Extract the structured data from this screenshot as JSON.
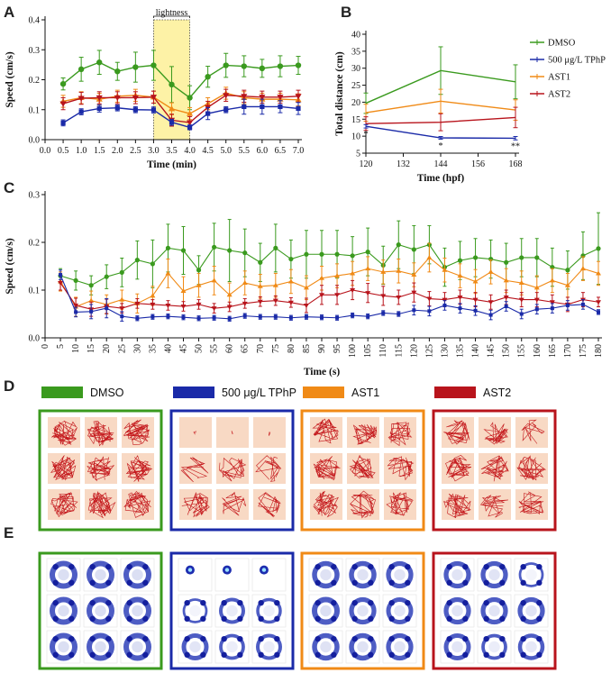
{
  "panel_labels": {
    "A": "A",
    "B": "B",
    "C": "C",
    "D": "D",
    "E": "E"
  },
  "colors": {
    "DMSO": "#3a9a1e",
    "TPhP": "#1a2aa8",
    "AST1": "#f08a16",
    "AST2": "#b8141c",
    "light_band": "#fdf2a6"
  },
  "legend": [
    "DMSO",
    "500 μg/L TPhP",
    "AST1",
    "AST2"
  ],
  "light_label": "lightness",
  "chart_data": [
    {
      "type": "line",
      "title": "",
      "xlabel": "Time (min)",
      "ylabel": "Speed (cm/s)",
      "xlim": [
        0,
        7
      ],
      "ylim": [
        0,
        0.4
      ],
      "x_ticks": [
        "0.0",
        "0.5",
        "1.0",
        "1.5",
        "2.0",
        "2.5",
        "3.0",
        "3.5",
        "4.0",
        "4.5",
        "5.0",
        "5.5",
        "6.0",
        "6.5",
        "7.0"
      ],
      "y_ticks": [
        "0.0",
        "0.1",
        "0.2",
        "0.3",
        "0.4"
      ],
      "light_band": [
        3.0,
        4.0
      ],
      "x": [
        0.5,
        1.0,
        1.5,
        2.0,
        2.5,
        3.0,
        3.5,
        4.0,
        4.5,
        5.0,
        5.5,
        6.0,
        6.5,
        7.0
      ],
      "series": [
        {
          "name": "DMSO",
          "values": [
            0.186,
            0.235,
            0.258,
            0.228,
            0.242,
            0.248,
            0.184,
            0.14,
            0.21,
            0.248,
            0.245,
            0.238,
            0.245,
            0.248
          ],
          "err": [
            0.02,
            0.04,
            0.04,
            0.03,
            0.05,
            0.05,
            0.06,
            0.04,
            0.035,
            0.04,
            0.035,
            0.03,
            0.035,
            0.03
          ]
        },
        {
          "name": "500 μg/L TPhP",
          "values": [
            0.056,
            0.093,
            0.104,
            0.106,
            0.1,
            0.099,
            0.058,
            0.041,
            0.087,
            0.1,
            0.11,
            0.11,
            0.11,
            0.104
          ],
          "err": [
            0.01,
            0.01,
            0.012,
            0.01,
            0.01,
            0.01,
            0.01,
            0.008,
            0.02,
            0.01,
            0.025,
            0.025,
            0.02,
            0.02
          ]
        },
        {
          "name": "AST1",
          "values": [
            0.128,
            0.14,
            0.135,
            0.145,
            0.148,
            0.142,
            0.103,
            0.087,
            0.12,
            0.155,
            0.14,
            0.135,
            0.135,
            0.133
          ],
          "err": [
            0.02,
            0.02,
            0.02,
            0.02,
            0.02,
            0.02,
            0.02,
            0.02,
            0.02,
            0.02,
            0.02,
            0.02,
            0.02,
            0.02
          ]
        },
        {
          "name": "AST2",
          "values": [
            0.12,
            0.138,
            0.14,
            0.14,
            0.14,
            0.142,
            0.065,
            0.057,
            0.108,
            0.148,
            0.145,
            0.142,
            0.142,
            0.145
          ],
          "err": [
            0.02,
            0.02,
            0.02,
            0.02,
            0.02,
            0.02,
            0.02,
            0.02,
            0.02,
            0.02,
            0.02,
            0.02,
            0.02,
            0.02
          ]
        }
      ]
    },
    {
      "type": "line",
      "title": "",
      "xlabel": "Time (hpf)",
      "ylabel": "Total distance (cm)",
      "xlim": [
        120,
        168
      ],
      "ylim": [
        5,
        40
      ],
      "x_ticks": [
        "120",
        "132",
        "144",
        "156",
        "168"
      ],
      "y_ticks": [
        "5",
        "10",
        "15",
        "20",
        "25",
        "30",
        "35",
        "40"
      ],
      "x": [
        120,
        144,
        168
      ],
      "series": [
        {
          "name": "DMSO",
          "values": [
            19.7,
            29.3,
            26.0
          ],
          "err": [
            3,
            7,
            5
          ]
        },
        {
          "name": "500 μg/L TPhP",
          "values": [
            12.9,
            9.5,
            9.4
          ],
          "err": [
            0.5,
            0.4,
            0.5
          ]
        },
        {
          "name": "AST1",
          "values": [
            16.9,
            20.3,
            17.7
          ],
          "err": [
            2.5,
            3.5,
            3
          ]
        },
        {
          "name": "AST2",
          "values": [
            13.7,
            14.1,
            15.5
          ],
          "err": [
            2,
            2.5,
            3
          ]
        }
      ],
      "annotations": [
        "*",
        "*",
        "**"
      ]
    },
    {
      "type": "line",
      "title": "",
      "xlabel": "Time (s)",
      "ylabel": "Speed (cm/s)",
      "xlim": [
        0,
        180
      ],
      "ylim": [
        0,
        0.3
      ],
      "x_ticks": [
        "0",
        "5",
        "10",
        "15",
        "20",
        "25",
        "30",
        "35",
        "40",
        "45",
        "50",
        "55",
        "60",
        "65",
        "70",
        "75",
        "80",
        "85",
        "90",
        "95",
        "100",
        "105",
        "110",
        "115",
        "120",
        "125",
        "130",
        "135",
        "140",
        "145",
        "150",
        "155",
        "160",
        "165",
        "170",
        "175",
        "180"
      ],
      "y_ticks": [
        "0.0",
        "0.1",
        "0.2",
        "0.3"
      ],
      "x": [
        5,
        10,
        15,
        20,
        25,
        30,
        35,
        40,
        45,
        50,
        55,
        60,
        65,
        70,
        75,
        80,
        85,
        90,
        95,
        100,
        105,
        110,
        115,
        120,
        125,
        130,
        135,
        140,
        145,
        150,
        155,
        160,
        165,
        170,
        175,
        180
      ],
      "series": [
        {
          "name": "DMSO",
          "values": [
            0.13,
            0.12,
            0.11,
            0.128,
            0.137,
            0.163,
            0.155,
            0.188,
            0.183,
            0.142,
            0.19,
            0.183,
            0.178,
            0.158,
            0.188,
            0.165,
            0.175,
            0.175,
            0.175,
            0.172,
            0.18,
            0.152,
            0.195,
            0.185,
            0.195,
            0.148,
            0.162,
            0.168,
            0.165,
            0.158,
            0.168,
            0.168,
            0.148,
            0.142,
            0.172,
            0.187
          ],
          "err": [
            0.015,
            0.02,
            0.02,
            0.025,
            0.03,
            0.04,
            0.05,
            0.05,
            0.05,
            0.03,
            0.05,
            0.065,
            0.05,
            0.04,
            0.05,
            0.04,
            0.05,
            0.05,
            0.05,
            0.04,
            0.05,
            0.04,
            0.05,
            0.05,
            0.04,
            0.04,
            0.04,
            0.04,
            0.04,
            0.04,
            0.04,
            0.04,
            0.04,
            0.04,
            0.05,
            0.075
          ]
        },
        {
          "name": "500 μg/L TPhP",
          "values": [
            0.132,
            0.054,
            0.055,
            0.062,
            0.045,
            0.041,
            0.044,
            0.045,
            0.043,
            0.041,
            0.042,
            0.04,
            0.046,
            0.044,
            0.044,
            0.042,
            0.044,
            0.043,
            0.042,
            0.047,
            0.045,
            0.052,
            0.05,
            0.058,
            0.056,
            0.068,
            0.062,
            0.057,
            0.048,
            0.066,
            0.05,
            0.06,
            0.062,
            0.068,
            0.07,
            0.054
          ],
          "err": [
            0.01,
            0.01,
            0.015,
            0.02,
            0.01,
            0.005,
            0.005,
            0.005,
            0.005,
            0.005,
            0.005,
            0.005,
            0.005,
            0.005,
            0.005,
            0.005,
            0.005,
            0.005,
            0.005,
            0.005,
            0.005,
            0.005,
            0.005,
            0.01,
            0.01,
            0.01,
            0.01,
            0.01,
            0.01,
            0.01,
            0.01,
            0.01,
            0.01,
            0.01,
            0.01,
            0.005
          ]
        },
        {
          "name": "AST1",
          "values": [
            0.118,
            0.065,
            0.078,
            0.07,
            0.08,
            0.072,
            0.088,
            0.135,
            0.098,
            0.11,
            0.12,
            0.09,
            0.115,
            0.108,
            0.11,
            0.118,
            0.105,
            0.125,
            0.13,
            0.135,
            0.145,
            0.138,
            0.14,
            0.132,
            0.168,
            0.142,
            0.13,
            0.118,
            0.138,
            0.12,
            0.115,
            0.105,
            0.12,
            0.11,
            0.145,
            0.135
          ],
          "err": [
            0.02,
            0.02,
            0.02,
            0.02,
            0.02,
            0.02,
            0.02,
            0.03,
            0.03,
            0.025,
            0.03,
            0.025,
            0.025,
            0.025,
            0.025,
            0.025,
            0.025,
            0.025,
            0.025,
            0.025,
            0.025,
            0.025,
            0.025,
            0.025,
            0.03,
            0.025,
            0.025,
            0.025,
            0.025,
            0.025,
            0.025,
            0.025,
            0.025,
            0.025,
            0.025,
            0.025
          ]
        },
        {
          "name": "AST2",
          "values": [
            0.115,
            0.068,
            0.06,
            0.066,
            0.062,
            0.072,
            0.07,
            0.068,
            0.066,
            0.07,
            0.062,
            0.065,
            0.072,
            0.076,
            0.078,
            0.074,
            0.068,
            0.09,
            0.09,
            0.1,
            0.094,
            0.088,
            0.085,
            0.095,
            0.082,
            0.08,
            0.085,
            0.08,
            0.075,
            0.085,
            0.08,
            0.08,
            0.075,
            0.07,
            0.08,
            0.075
          ],
          "err": [
            0.015,
            0.015,
            0.015,
            0.015,
            0.01,
            0.01,
            0.01,
            0.01,
            0.01,
            0.01,
            0.01,
            0.01,
            0.01,
            0.01,
            0.01,
            0.01,
            0.015,
            0.02,
            0.02,
            0.02,
            0.02,
            0.02,
            0.015,
            0.02,
            0.015,
            0.015,
            0.015,
            0.015,
            0.015,
            0.015,
            0.015,
            0.015,
            0.015,
            0.015,
            0.015,
            0.01
          ]
        }
      ]
    }
  ],
  "track_groups": [
    {
      "name": "DMSO",
      "activity": [
        1,
        1,
        1,
        1,
        1,
        1,
        1,
        1,
        1
      ]
    },
    {
      "name": "500 μg/L TPhP",
      "activity": [
        0.05,
        0.08,
        0.05,
        0.35,
        0.6,
        0.5,
        0.8,
        0.55,
        0.6
      ]
    },
    {
      "name": "AST1",
      "activity": [
        0.9,
        0.9,
        0.85,
        1,
        0.85,
        0.8,
        0.9,
        0.9,
        0.85
      ]
    },
    {
      "name": "AST2",
      "activity": [
        0.85,
        0.85,
        0.35,
        0.85,
        0.85,
        0.85,
        0.8,
        0.55,
        0.7
      ]
    }
  ]
}
